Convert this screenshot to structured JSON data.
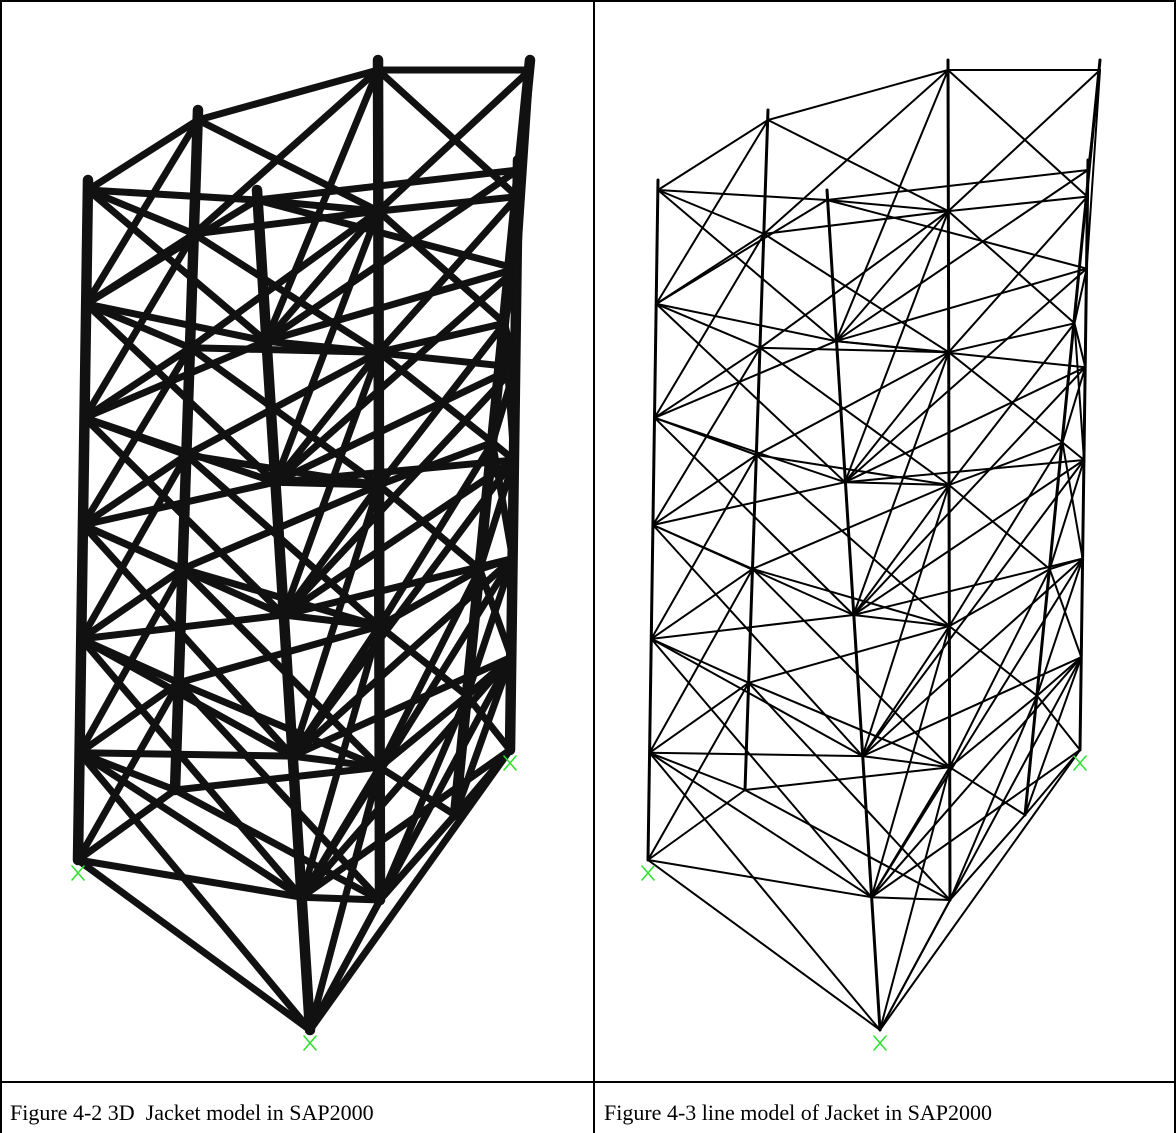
{
  "figures": [
    {
      "caption": "Figure 4-2 3D  Jacket model in SAP2000"
    },
    {
      "caption": "Figure 4-3 line model of Jacket in SAP2000"
    }
  ]
}
